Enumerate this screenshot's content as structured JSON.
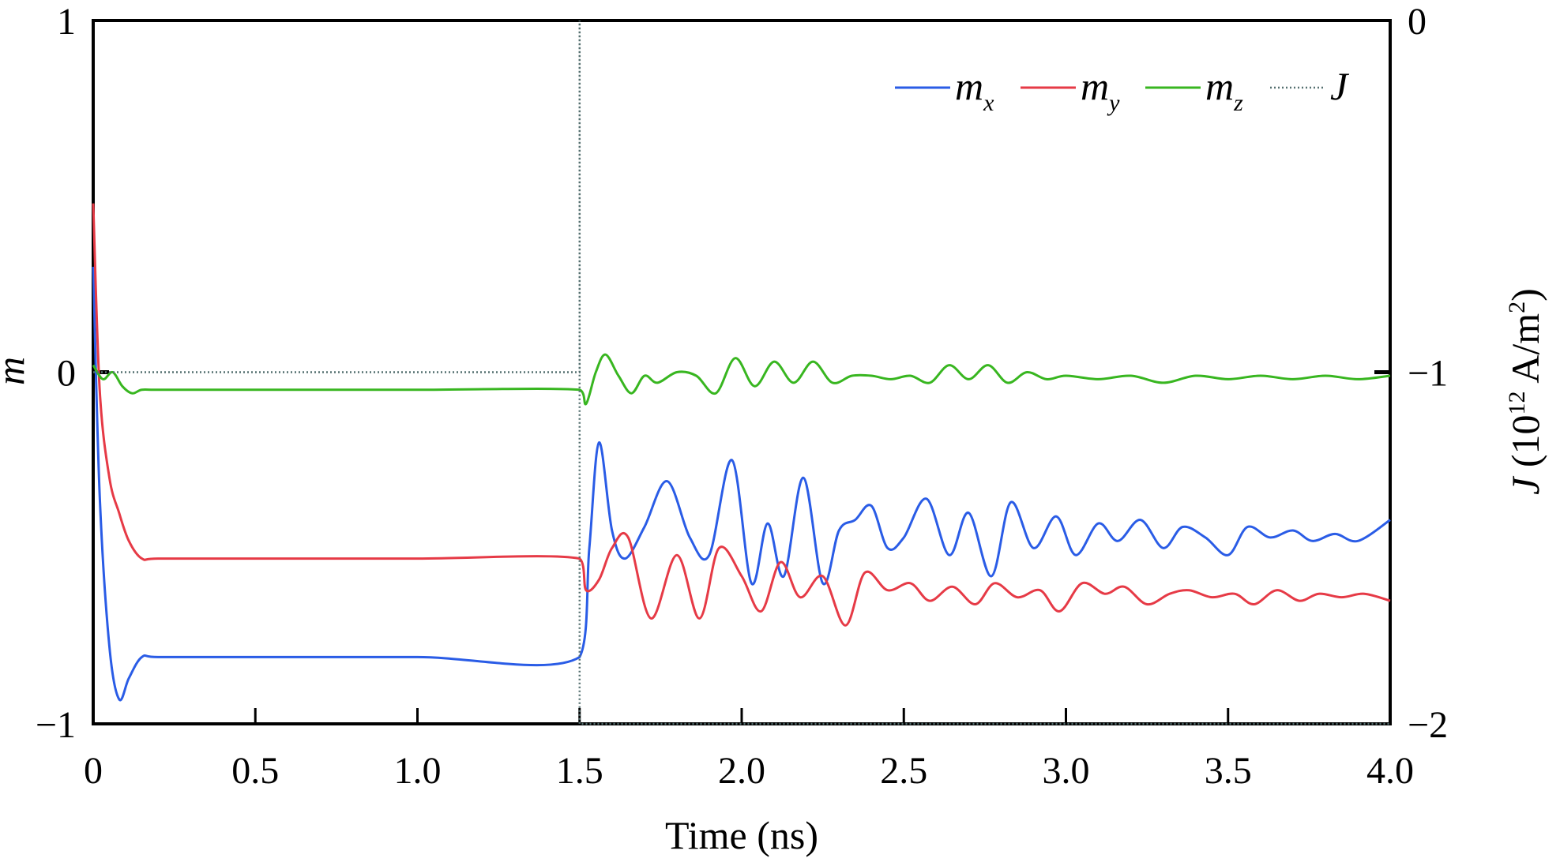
{
  "chart_data": {
    "type": "line",
    "xlabel": "Time (ns)",
    "ylabel_left": "m",
    "ylabel_right": {
      "italic": "J",
      "prefix": " (10",
      "exponent": "12",
      "middle": " A/m",
      "power": "2",
      "suffix": ")"
    },
    "xlim": [
      0,
      4.0
    ],
    "ylim_left": [
      -1,
      1
    ],
    "ylim_right": [
      -2,
      0
    ],
    "x_ticks": [
      0,
      0.5,
      1.0,
      1.5,
      2.0,
      2.5,
      3.0,
      3.5,
      4.0
    ],
    "x_tick_labels": [
      "0",
      "0.5",
      "1.0",
      "1.5",
      "2.0",
      "2.5",
      "3.0",
      "3.5",
      "4.0"
    ],
    "y_left_ticks": [
      1,
      0,
      -1
    ],
    "y_left_tick_labels": [
      "1",
      "0",
      "−1"
    ],
    "y_right_ticks": [
      0,
      -1,
      -2
    ],
    "y_right_tick_labels": [
      "0",
      "−1",
      "−2"
    ],
    "grid": false,
    "legend_position": "top-right",
    "series": [
      {
        "name": "mx",
        "legend_base": "m",
        "legend_sub": "x",
        "color": "#2a5ce6",
        "x": [
          0,
          0.02,
          0.05,
          0.08,
          0.11,
          0.15,
          0.2,
          0.5,
          1.0,
          1.5,
          1.53,
          1.56,
          1.6,
          1.64,
          1.7,
          1.77,
          1.84,
          1.9,
          1.97,
          2.03,
          2.08,
          2.13,
          2.19,
          2.25,
          2.3,
          2.35,
          2.4,
          2.45,
          2.5,
          2.57,
          2.64,
          2.7,
          2.77,
          2.83,
          2.9,
          2.97,
          3.03,
          3.1,
          3.16,
          3.23,
          3.3,
          3.36,
          3.43,
          3.5,
          3.56,
          3.63,
          3.7,
          3.76,
          3.83,
          3.9,
          4.0
        ],
        "y": [
          0.3,
          -0.35,
          -0.78,
          -0.93,
          -0.87,
          -0.81,
          -0.81,
          -0.81,
          -0.81,
          -0.81,
          -0.5,
          -0.2,
          -0.45,
          -0.53,
          -0.44,
          -0.31,
          -0.47,
          -0.52,
          -0.25,
          -0.6,
          -0.43,
          -0.58,
          -0.3,
          -0.6,
          -0.45,
          -0.42,
          -0.38,
          -0.5,
          -0.47,
          -0.36,
          -0.52,
          -0.4,
          -0.58,
          -0.37,
          -0.5,
          -0.41,
          -0.52,
          -0.43,
          -0.48,
          -0.42,
          -0.5,
          -0.44,
          -0.47,
          -0.52,
          -0.44,
          -0.47,
          -0.45,
          -0.48,
          -0.46,
          -0.48,
          -0.42
        ]
      },
      {
        "name": "my",
        "legend_base": "m",
        "legend_sub": "y",
        "color": "#e63a46",
        "x": [
          0,
          0.02,
          0.05,
          0.08,
          0.11,
          0.15,
          0.2,
          0.5,
          1.0,
          1.5,
          1.52,
          1.56,
          1.6,
          1.65,
          1.72,
          1.8,
          1.87,
          1.93,
          2.0,
          2.06,
          2.12,
          2.18,
          2.25,
          2.32,
          2.38,
          2.45,
          2.52,
          2.58,
          2.65,
          2.72,
          2.78,
          2.85,
          2.92,
          2.98,
          3.05,
          3.12,
          3.18,
          3.25,
          3.32,
          3.38,
          3.45,
          3.52,
          3.58,
          3.65,
          3.72,
          3.78,
          3.85,
          3.92,
          4.0
        ],
        "y": [
          0.48,
          -0.05,
          -0.3,
          -0.4,
          -0.48,
          -0.53,
          -0.53,
          -0.53,
          -0.53,
          -0.53,
          -0.62,
          -0.59,
          -0.5,
          -0.47,
          -0.7,
          -0.52,
          -0.7,
          -0.5,
          -0.58,
          -0.68,
          -0.54,
          -0.64,
          -0.58,
          -0.72,
          -0.57,
          -0.62,
          -0.6,
          -0.65,
          -0.61,
          -0.66,
          -0.6,
          -0.64,
          -0.62,
          -0.68,
          -0.6,
          -0.63,
          -0.61,
          -0.66,
          -0.63,
          -0.62,
          -0.64,
          -0.63,
          -0.66,
          -0.62,
          -0.65,
          -0.63,
          -0.64,
          -0.63,
          -0.65
        ]
      },
      {
        "name": "mz",
        "legend_base": "m",
        "legend_sub": "z",
        "color": "#38b620",
        "x": [
          0,
          0.03,
          0.06,
          0.09,
          0.12,
          0.15,
          0.2,
          0.5,
          1.0,
          1.5,
          1.52,
          1.55,
          1.58,
          1.62,
          1.66,
          1.7,
          1.74,
          1.8,
          1.86,
          1.92,
          1.98,
          2.04,
          2.1,
          2.16,
          2.22,
          2.28,
          2.34,
          2.4,
          2.46,
          2.52,
          2.58,
          2.64,
          2.7,
          2.76,
          2.82,
          2.88,
          2.94,
          3.0,
          3.1,
          3.2,
          3.3,
          3.4,
          3.5,
          3.6,
          3.7,
          3.8,
          3.9,
          4.0
        ],
        "y": [
          0.02,
          -0.02,
          0.0,
          -0.04,
          -0.06,
          -0.05,
          -0.05,
          -0.05,
          -0.05,
          -0.05,
          -0.09,
          0.0,
          0.05,
          -0.01,
          -0.06,
          -0.01,
          -0.03,
          0.0,
          -0.01,
          -0.06,
          0.04,
          -0.04,
          0.03,
          -0.03,
          0.03,
          -0.03,
          -0.01,
          -0.01,
          -0.02,
          -0.01,
          -0.03,
          0.02,
          -0.02,
          0.02,
          -0.03,
          0.0,
          -0.02,
          -0.01,
          -0.02,
          -0.01,
          -0.03,
          -0.01,
          -0.02,
          -0.01,
          -0.02,
          -0.01,
          -0.02,
          -0.01
        ]
      },
      {
        "name": "J",
        "legend_base": "J",
        "legend_sub": "",
        "color": "#557070",
        "x": [
          0,
          1.5,
          1.5,
          1.5,
          4.0
        ],
        "y": [
          -1,
          -1,
          0,
          -2,
          -2
        ],
        "axis": "right"
      }
    ]
  }
}
